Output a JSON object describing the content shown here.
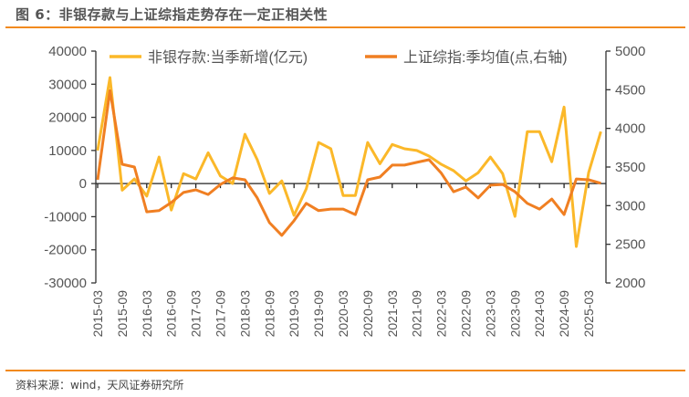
{
  "title": "图 6：非银存款与上证综指走势存在一定正相关性",
  "source": "资料来源：wind，天风证券研究所",
  "chart_data": {
    "type": "line",
    "title": "",
    "grid": false,
    "legend_placement": "top",
    "x": [
      "2015-03",
      "2015-06",
      "2015-09",
      "2015-12",
      "2016-03",
      "2016-06",
      "2016-09",
      "2016-12",
      "2017-03",
      "2017-06",
      "2017-09",
      "2017-12",
      "2018-03",
      "2018-06",
      "2018-09",
      "2018-12",
      "2019-03",
      "2019-06",
      "2019-09",
      "2019-12",
      "2020-03",
      "2020-06",
      "2020-09",
      "2020-12",
      "2021-03",
      "2021-06",
      "2021-09",
      "2021-12",
      "2022-03",
      "2022-06",
      "2022-09",
      "2022-12",
      "2023-03",
      "2023-06",
      "2023-09",
      "2023-12",
      "2024-03",
      "2024-06",
      "2024-09",
      "2024-12",
      "2025-03",
      "2025-06"
    ],
    "x_tick_labels": [
      "2015-03",
      "2015-09",
      "2016-03",
      "2016-09",
      "2017-03",
      "2017-09",
      "2018-03",
      "2018-09",
      "2019-03",
      "2019-09",
      "2020-03",
      "2020-09",
      "2021-03",
      "2021-09",
      "2022-03",
      "2022-09",
      "2023-03",
      "2023-09",
      "2024-03",
      "2024-09",
      "2025-03"
    ],
    "y_left": {
      "range": [
        -30000,
        40000
      ],
      "ticks": [
        -30000,
        -20000,
        -10000,
        0,
        10000,
        20000,
        30000,
        40000
      ]
    },
    "y_right": {
      "range": [
        2000,
        5000
      ],
      "ticks": [
        2000,
        2500,
        3000,
        3500,
        4000,
        4500,
        5000
      ]
    },
    "series": [
      {
        "name": "非银存款:当季新增(亿元)",
        "axis": "left",
        "color": "#FBB829",
        "values": [
          10000,
          32000,
          -2000,
          1400,
          -3800,
          8000,
          -8000,
          3000,
          1400,
          9300,
          2300,
          0,
          14900,
          7200,
          -3000,
          800,
          -9600,
          -1600,
          12400,
          10500,
          -3600,
          -3600,
          12400,
          6000,
          11800,
          10500,
          10000,
          8300,
          5800,
          3900,
          800,
          3300,
          8000,
          3000,
          -9900,
          15700,
          15700,
          6600,
          23100,
          -19000,
          3300,
          15700
        ]
      },
      {
        "name": "上证综指:季均值(点,右轴)",
        "axis": "right",
        "color": "#F07F22",
        "values": [
          3335,
          4490,
          3535,
          3500,
          2920,
          2935,
          3040,
          3170,
          3205,
          3145,
          3275,
          3360,
          3335,
          3100,
          2780,
          2615,
          2805,
          3030,
          2935,
          2955,
          2955,
          2885,
          3335,
          3370,
          3525,
          3525,
          3560,
          3595,
          3420,
          3180,
          3240,
          3100,
          3265,
          3275,
          3180,
          3030,
          2955,
          3085,
          2885,
          3345,
          3335,
          3290
        ]
      }
    ]
  }
}
